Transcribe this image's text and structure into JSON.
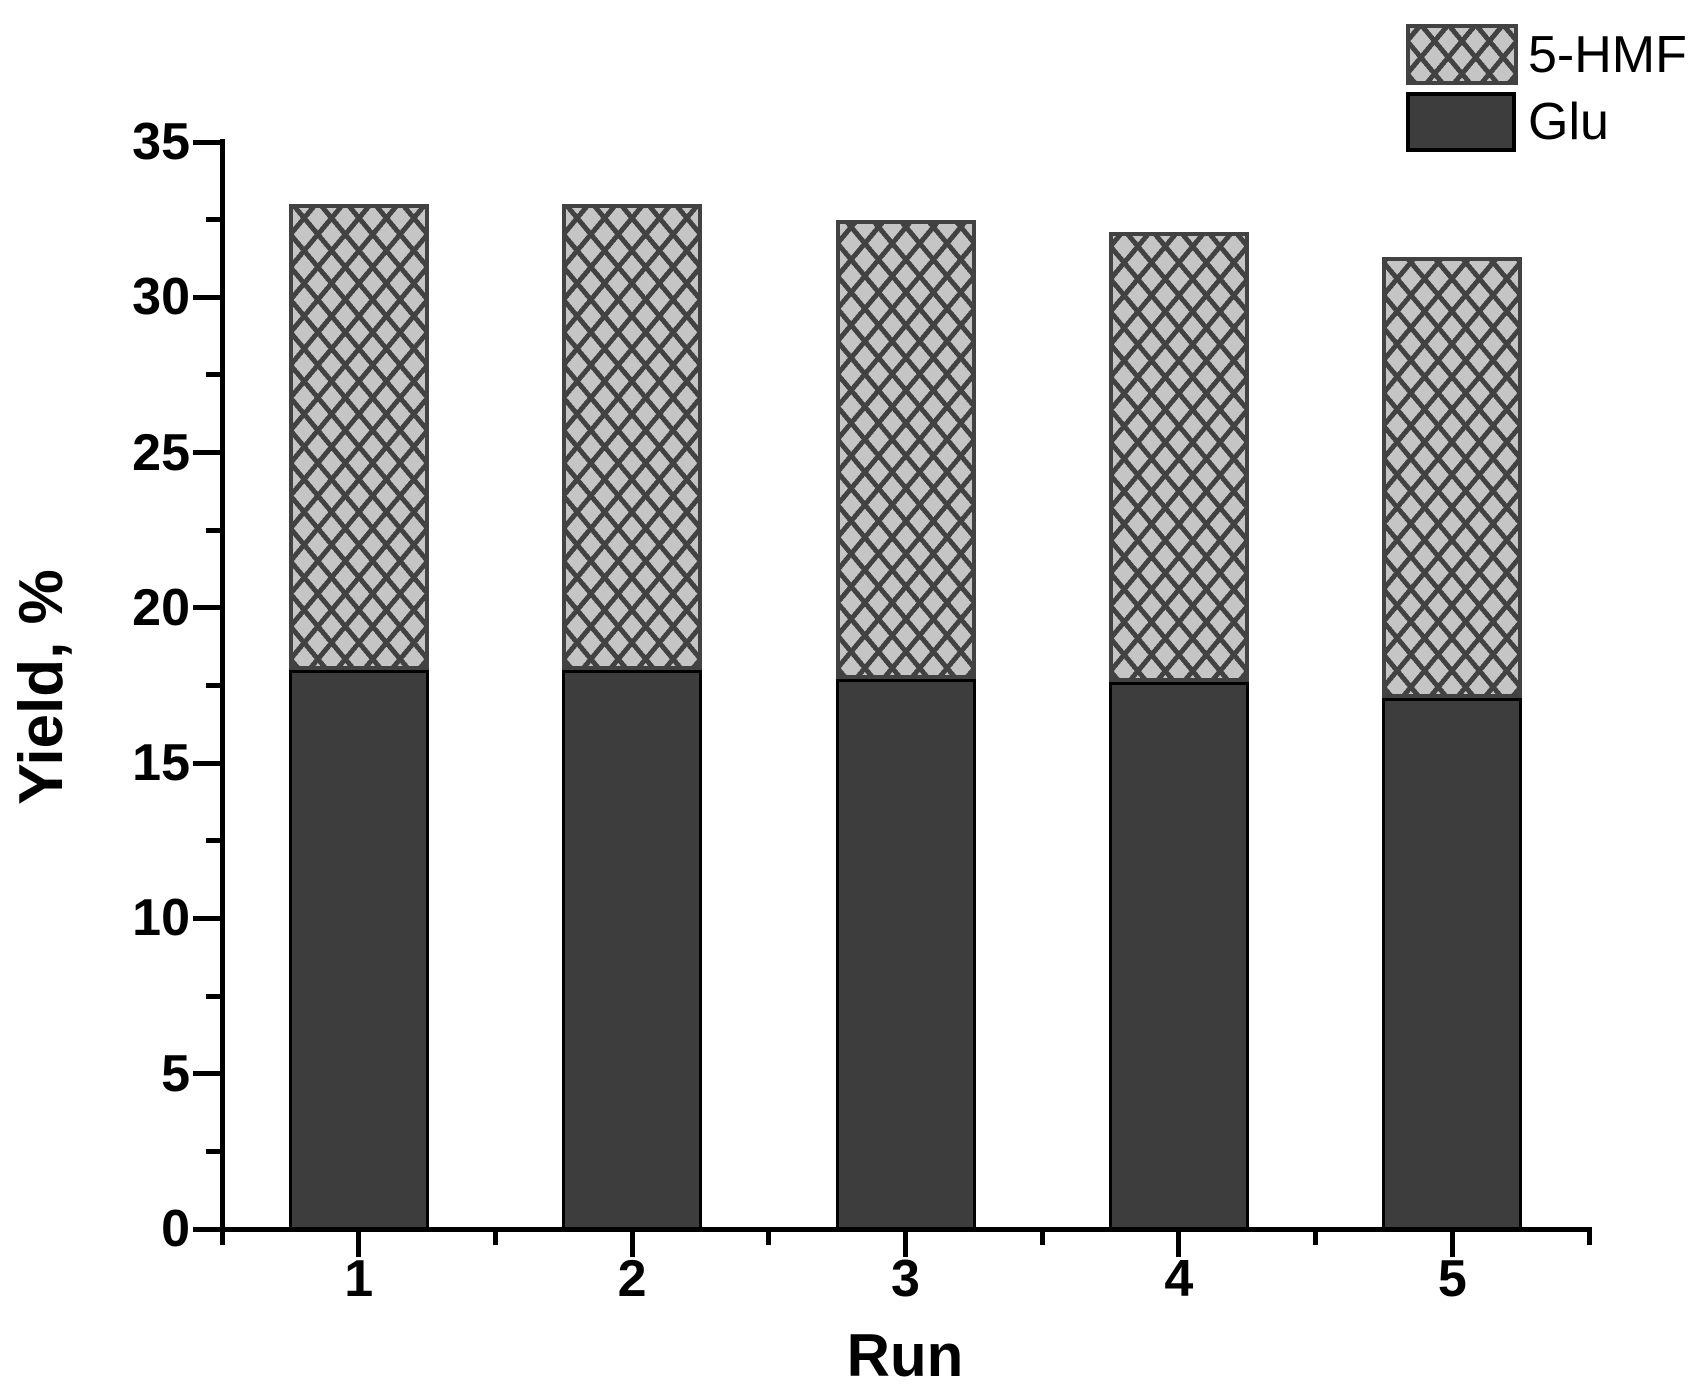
{
  "chart_data": {
    "type": "bar",
    "stacked": true,
    "title": "",
    "xlabel": "Run",
    "ylabel": "Yield, %",
    "categories": [
      "1",
      "2",
      "3",
      "4",
      "5"
    ],
    "series": [
      {
        "name": "Glu",
        "style": "solid-dark",
        "values": [
          18.0,
          18.0,
          17.7,
          17.6,
          17.1
        ]
      },
      {
        "name": "5-HMF",
        "style": "crosshatch",
        "values": [
          15.0,
          15.0,
          14.8,
          14.5,
          14.2
        ]
      }
    ],
    "totals": [
      33.0,
      33.0,
      32.5,
      32.1,
      31.3
    ],
    "ylim": [
      0,
      35
    ],
    "y_major_ticks": [
      0,
      5,
      10,
      15,
      20,
      25,
      30,
      35
    ],
    "y_minor_ticks": [
      2.5,
      7.5,
      12.5,
      17.5,
      22.5,
      27.5,
      32.5
    ],
    "grid": false,
    "legend_position": "top-right",
    "legend_order": [
      "5-HMF",
      "Glu"
    ],
    "colors": {
      "glu_fill": "#3d3d3d",
      "glu_border": "#000000",
      "hatch_background": "#c5c5c5",
      "hatch_line": "#424242",
      "axis": "#000000",
      "text": "#000000",
      "background": "#ffffff"
    }
  }
}
